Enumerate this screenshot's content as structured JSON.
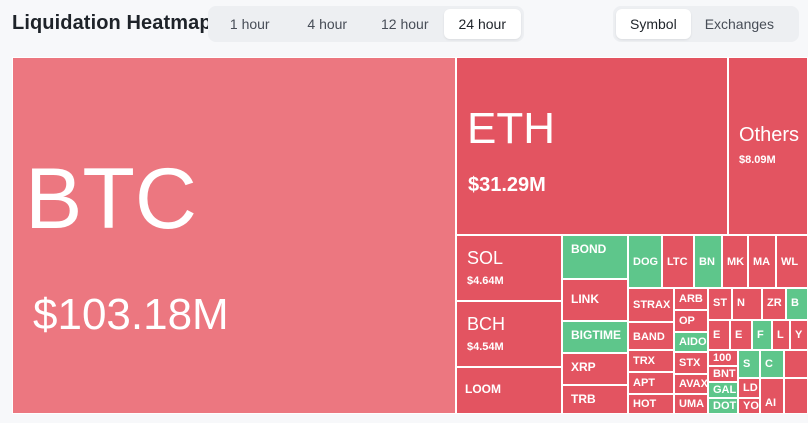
{
  "header": {
    "title": "Liquidation Heatmap",
    "time_tabs": [
      "1 hour",
      "4 hour",
      "12 hour",
      "24 hour"
    ],
    "active_time_tab": "24 hour",
    "view_tabs": [
      "Symbol",
      "Exchanges"
    ],
    "active_view_tab": "Symbol"
  },
  "colors": {
    "long_red": "#e35461",
    "btc_pink": "#ec7780",
    "short_green": "#5ec68b"
  },
  "heatmap": {
    "btc": {
      "symbol": "BTC",
      "value": "$103.18M"
    },
    "eth": {
      "symbol": "ETH",
      "value": "$31.29M"
    },
    "others": {
      "symbol": "Others",
      "value": "$8.09M"
    },
    "sol": {
      "symbol": "SOL",
      "value": "$4.64M"
    },
    "bch": {
      "symbol": "BCH",
      "value": "$4.54M"
    },
    "loom": {
      "symbol": "LOOM"
    },
    "bond": {
      "symbol": "BOND"
    },
    "link": {
      "symbol": "LINK"
    },
    "bigtime": {
      "symbol": "BIGTIME"
    },
    "xrp": {
      "symbol": "XRP"
    },
    "trb": {
      "symbol": "TRB"
    },
    "dog": {
      "symbol": "DOG"
    },
    "ltc": {
      "symbol": "LTC"
    },
    "bn": {
      "symbol": "BN"
    },
    "mk": {
      "symbol": "MK"
    },
    "ma": {
      "symbol": "MA"
    },
    "wl": {
      "symbol": "WL"
    },
    "strax": {
      "symbol": "STRAX"
    },
    "arb": {
      "symbol": "ARB"
    },
    "band": {
      "symbol": "BAND"
    },
    "op": {
      "symbol": "OP"
    },
    "aidoge": {
      "symbol": "AIDO"
    },
    "trx": {
      "symbol": "TRX"
    },
    "stx": {
      "symbol": "STX"
    },
    "apt": {
      "symbol": "APT"
    },
    "avax": {
      "symbol": "AVAX"
    },
    "hot": {
      "symbol": "HOT"
    },
    "uma": {
      "symbol": "UMA"
    },
    "st": {
      "symbol": "ST"
    },
    "n": {
      "symbol": "N"
    },
    "zr": {
      "symbol": "ZR"
    },
    "e1": {
      "symbol": "E"
    },
    "e2": {
      "symbol": "E"
    },
    "f": {
      "symbol": "F"
    },
    "c100": {
      "symbol": "100"
    },
    "bnt": {
      "symbol": "BNT"
    },
    "gal": {
      "symbol": "GAL"
    },
    "dot": {
      "symbol": "DOT"
    },
    "b": {
      "symbol": "B"
    },
    "l": {
      "symbol": "L"
    },
    "y": {
      "symbol": "Y"
    },
    "yo": {
      "symbol": "YO"
    },
    "ld": {
      "symbol": "LD"
    },
    "ai": {
      "symbol": "AI"
    },
    "s1": {
      "symbol": "S"
    },
    "c1": {
      "symbol": "C"
    }
  }
}
